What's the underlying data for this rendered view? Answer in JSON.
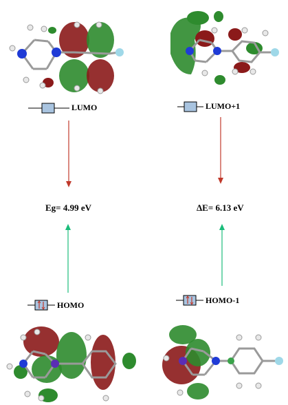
{
  "orbitals": {
    "lumo_label": "LUMO",
    "lumo1_label": "LUMO+1",
    "homo_label": "HOMO",
    "homo1_label": "HOMO-1"
  },
  "gaps": {
    "left": "Eg= 4.99 eV",
    "right": "ΔE= 6.13 eV"
  },
  "colors": {
    "lobe_positive": "#8b1a1a",
    "lobe_negative": "#2e8b2e",
    "down_arrow": "#c0392b",
    "up_arrow": "#1abc7a",
    "level_box": "#a9c4e0",
    "nitrogen": "#1f3bd6",
    "fluorine": "#9fd8e8",
    "hydrogen": "#e8e8e8",
    "carbon": "#8a8a8a"
  }
}
